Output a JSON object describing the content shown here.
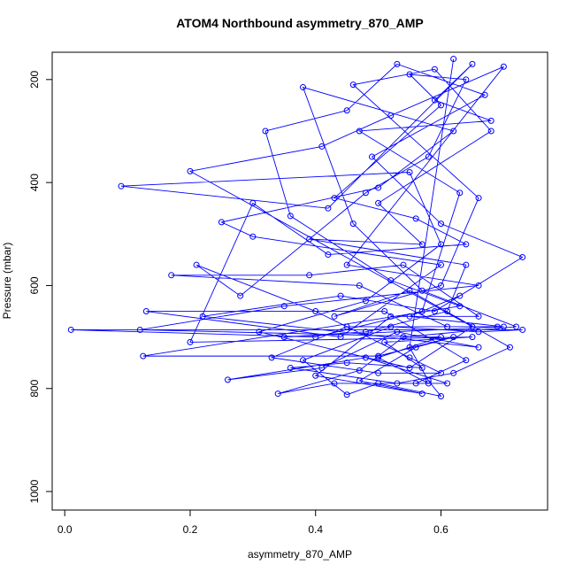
{
  "chart_data": {
    "type": "line",
    "markers": true,
    "title": "ATOM4 Northbound asymmetry_870_AMP",
    "x_label": "asymmetry_870_AMP",
    "y_label": "Pressure (mbar)",
    "xlim": [
      -0.02,
      0.77
    ],
    "xticks": [
      {
        "value": 0,
        "label": "0.0"
      },
      0.2,
      0.4,
      0.6
    ],
    "ylim": [
      1036,
      147
    ],
    "yticks": [
      200,
      400,
      600,
      800,
      1000
    ],
    "x": [
      0.62,
      0.55,
      0.58,
      0.6,
      0.5,
      0.45,
      0.38,
      0.52,
      0.66,
      0.73,
      0.01,
      0.4,
      0.57,
      0.63,
      0.47,
      0.68,
      0.59,
      0.65,
      0.42,
      0.09,
      0.55,
      0.6,
      0.48,
      0.31,
      0.55,
      0.65,
      0.2,
      0.41,
      0.52,
      0.7,
      0.45,
      0.66,
      0.35,
      0.12,
      0.6,
      0.5,
      0.58,
      0.43,
      0.34,
      0.47,
      0.54,
      0.72,
      0.57,
      0.46,
      0.38,
      0.62,
      0.5,
      0.25,
      0.3,
      0.6,
      0.44,
      0.13,
      0.51,
      0.64,
      0.56,
      0.61,
      0.48,
      0.26,
      0.41,
      0.53,
      0.66,
      0.22,
      0.44,
      0.59,
      0.73,
      0.6,
      0.49,
      0.67,
      0.53,
      0.45,
      0.32,
      0.36,
      0.52,
      0.63,
      0.125,
      0.5,
      0.62,
      0.56,
      0.47,
      0.57,
      0.4,
      0.52,
      0.66,
      0.54,
      0.39,
      0.17,
      0.47,
      0.61,
      0.69,
      0.45,
      0.33,
      0.5,
      0.6,
      0.55,
      0.4,
      0.21,
      0.28,
      0.48,
      0.58,
      0.64,
      0.55,
      0.6,
      0.43,
      0.56,
      0.64,
      0.42,
      0.3,
      0.2,
      0.65,
      0.51,
      0.57,
      0.45,
      0.36,
      0.53,
      0.62,
      0.71,
      0.55,
      0.43,
      0.6,
      0.66,
      0.46,
      0.59,
      0.68,
      0.5,
      0.57,
      0.39,
      0.64,
      0.61,
      0.48,
      0.35,
      0.7,
      0.55,
      0.63
    ],
    "series": [
      {
        "color": "#0000ff",
        "values": [
          160,
          720,
          785,
          815,
          790,
          812,
          745,
          680,
          690,
          686,
          686,
          700,
          650,
          420,
          300,
          280,
          240,
          170,
          450,
          407,
          380,
          520,
          630,
          690,
          760,
          680,
          378,
          330,
          270,
          175,
          560,
          600,
          640,
          686,
          700,
          740,
          790,
          790,
          810,
          765,
          700,
          680,
          610,
          480,
          215,
          300,
          410,
          477,
          505,
          560,
          700,
          650,
          650,
          745,
          790,
          790,
          740,
          783,
          760,
          690,
          720,
          660,
          620,
          650,
          545,
          480,
          350,
          230,
          170,
          260,
          300,
          465,
          590,
          640,
          737,
          737,
          700,
          720,
          785,
          810,
          775,
          660,
          660,
          560,
          580,
          580,
          600,
          680,
          680,
          680,
          740,
          770,
          770,
          740,
          650,
          560,
          620,
          420,
          350,
          200,
          190,
          250,
          430,
          470,
          520,
          540,
          440,
          710,
          700,
          710,
          760,
          750,
          760,
          790,
          770,
          720,
          610,
          660,
          600,
          430,
          210,
          180,
          300,
          440,
          520,
          510,
          560,
          650,
          690,
          700,
          680,
          660,
          620
        ]
      }
    ]
  }
}
